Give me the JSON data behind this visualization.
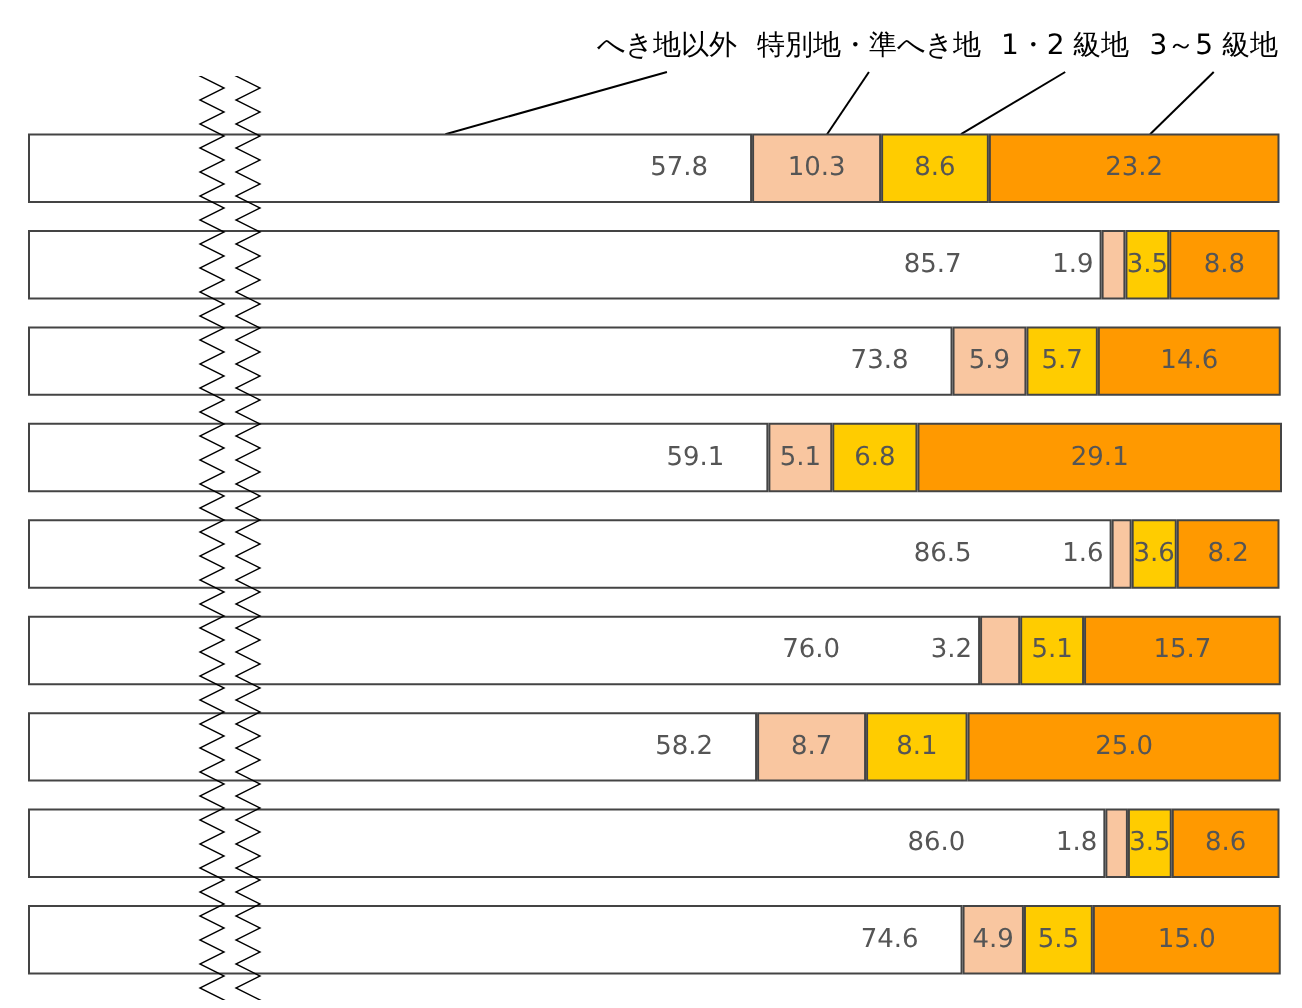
{
  "chart_data": {
    "type": "bar",
    "orientation": "horizontal",
    "stacked": true,
    "legend": false,
    "categories": [
      null,
      null,
      null,
      null,
      null,
      null,
      null,
      null,
      null
    ],
    "series": [
      {
        "name": "へき地以外",
        "color": "#ffffff",
        "values": [
          57.8,
          85.7,
          73.8,
          59.1,
          86.5,
          76.0,
          58.2,
          86.0,
          74.6
        ],
        "value_labels": [
          "57.8",
          "85.7",
          "73.8",
          "59.1",
          "86.5",
          "76.0",
          "58.2",
          "86.0",
          "74.6"
        ]
      },
      {
        "name": "特別地・準へき地",
        "color": "#f9c6a0",
        "values": [
          10.3,
          1.9,
          5.9,
          5.1,
          1.6,
          3.2,
          8.7,
          1.8,
          4.9
        ],
        "value_labels": [
          "10.3",
          "1.9",
          "5.9",
          "5.1",
          "1.6",
          "3.2",
          "8.7",
          "1.8",
          "4.9"
        ]
      },
      {
        "name": "1・2 級地",
        "color": "#ffcc00",
        "values": [
          8.6,
          3.5,
          5.7,
          6.8,
          3.6,
          5.1,
          8.1,
          3.5,
          5.5
        ],
        "value_labels": [
          "8.6",
          "3.5",
          "5.7",
          "6.8",
          "3.6",
          "5.1",
          "8.1",
          "3.5",
          "5.5"
        ]
      },
      {
        "name": "3～5 級地",
        "color": "#ff9900",
        "values": [
          23.2,
          8.8,
          14.6,
          29.1,
          8.2,
          15.7,
          25.0,
          8.6,
          15.0
        ],
        "value_labels": [
          "23.2",
          "8.8",
          "14.6",
          "29.1",
          "8.2",
          "15.7",
          "25.0",
          "8.6",
          "15.0"
        ]
      }
    ]
  }
}
